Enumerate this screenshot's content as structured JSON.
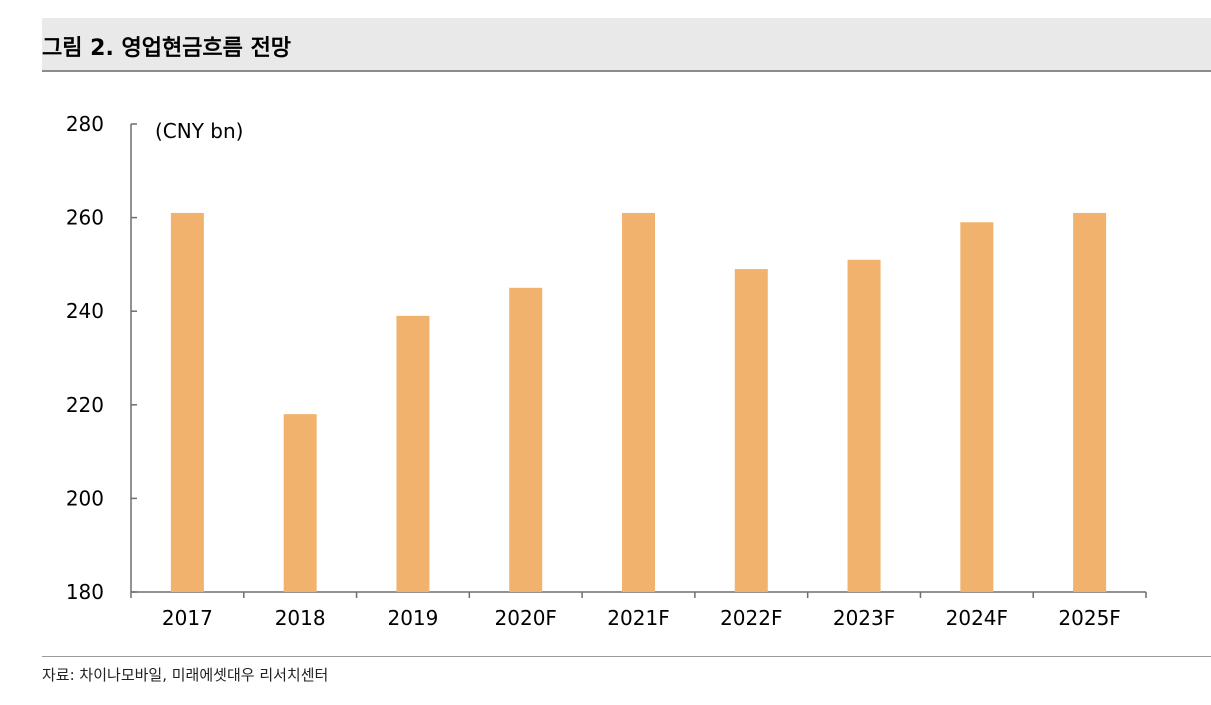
{
  "header": {
    "title": "그림 2. 영업현금흐름 전망"
  },
  "footer": {
    "source": "자료: 차이나모바일, 미래에셋대우 리서치센터"
  },
  "colors": {
    "bar": "#f0b26c",
    "axis": "#6e6e6e"
  },
  "chart_data": {
    "type": "bar",
    "unit_label": "(CNY bn)",
    "categories": [
      "2017",
      "2018",
      "2019",
      "2020F",
      "2021F",
      "2022F",
      "2023F",
      "2024F",
      "2025F"
    ],
    "values": [
      261,
      218,
      239,
      245,
      261,
      249,
      251,
      259,
      261
    ],
    "ylim": [
      180,
      280
    ],
    "yticks": [
      180,
      200,
      220,
      240,
      260,
      280
    ],
    "grid": false,
    "legend": "none",
    "xlabel": "",
    "ylabel": ""
  }
}
